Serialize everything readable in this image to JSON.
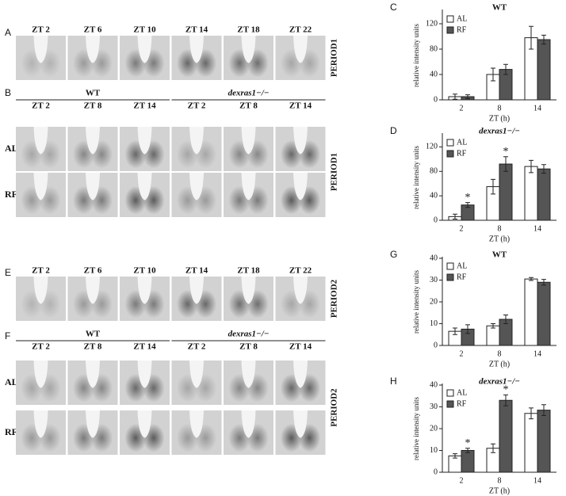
{
  "image_panels": [
    {
      "label": "A",
      "columns": [
        "ZT 2",
        "ZT 6",
        "ZT 10",
        "ZT 14",
        "ZT 18",
        "ZT 22"
      ],
      "side_label": "PERIOD1"
    },
    {
      "label": "B",
      "groups": [
        "WT",
        "dexras1−/−"
      ],
      "columns": [
        "ZT 2",
        "ZT 8",
        "ZT 14",
        "ZT 2",
        "ZT 8",
        "ZT 14"
      ],
      "rows": [
        "AL",
        "RF"
      ],
      "side_label": "PERIOD1"
    },
    {
      "label": "E",
      "columns": [
        "ZT 2",
        "ZT 6",
        "ZT 10",
        "ZT 14",
        "ZT 18",
        "ZT 22"
      ],
      "side_label": "PERIOD2"
    },
    {
      "label": "F",
      "groups": [
        "WT",
        "dexras1−/−"
      ],
      "columns": [
        "ZT 2",
        "ZT 8",
        "ZT 14",
        "ZT 2",
        "ZT 8",
        "ZT 14"
      ],
      "rows": [
        "AL",
        "RF"
      ],
      "side_label": "PERIOD2"
    }
  ],
  "chart_data": [
    {
      "type": "bar",
      "panel_label": "C",
      "title": "WT",
      "y_label": "relative intensity units",
      "x_label": "ZT (h)",
      "categories": [
        "2",
        "8",
        "14"
      ],
      "ylim": [
        0,
        140
      ],
      "yticks": [
        0,
        40,
        80,
        120
      ],
      "legend": "upper left",
      "series": [
        {
          "name": "AL",
          "color": "#ffffff",
          "values": [
            5,
            40,
            98
          ],
          "errors": [
            4,
            10,
            18
          ]
        },
        {
          "name": "RF",
          "color": "#555555",
          "values": [
            5,
            48,
            95
          ],
          "errors": [
            3,
            8,
            7
          ]
        }
      ]
    },
    {
      "type": "bar",
      "panel_label": "D",
      "title": "dexras1−/−",
      "y_label": "relative intensity units",
      "x_label": "ZT (h)",
      "categories": [
        "2",
        "8",
        "14"
      ],
      "ylim": [
        0,
        140
      ],
      "yticks": [
        0,
        40,
        80,
        120
      ],
      "legend": "upper left",
      "series": [
        {
          "name": "AL",
          "color": "#ffffff",
          "values": [
            6,
            55,
            88
          ],
          "errors": [
            4,
            12,
            10
          ]
        },
        {
          "name": "RF",
          "color": "#555555",
          "values": [
            25,
            92,
            84
          ],
          "errors": [
            4,
            12,
            7
          ],
          "annotations": [
            "*",
            "*",
            null
          ]
        }
      ]
    },
    {
      "type": "bar",
      "panel_label": "G",
      "title": "WT",
      "y_label": "relative intensity units",
      "x_label": "ZT (h)",
      "categories": [
        "2",
        "8",
        "14"
      ],
      "ylim": [
        0,
        40
      ],
      "yticks": [
        0,
        10,
        20,
        30,
        40
      ],
      "legend": "upper left",
      "series": [
        {
          "name": "AL",
          "color": "#ffffff",
          "values": [
            6.5,
            9,
            30.5
          ],
          "errors": [
            1.5,
            1,
            0.7
          ]
        },
        {
          "name": "RF",
          "color": "#555555",
          "values": [
            7.5,
            12,
            29
          ],
          "errors": [
            2,
            2,
            1.3
          ]
        }
      ]
    },
    {
      "type": "bar",
      "panel_label": "H",
      "title": "dexras1−/−",
      "y_label": "relative intensity units",
      "x_label": "ZT (h)",
      "categories": [
        "2",
        "8",
        "14"
      ],
      "ylim": [
        0,
        40
      ],
      "yticks": [
        0,
        10,
        20,
        30,
        40
      ],
      "legend": "upper left",
      "series": [
        {
          "name": "AL",
          "color": "#ffffff",
          "values": [
            7.5,
            11,
            27
          ],
          "errors": [
            1,
            2,
            2.5
          ]
        },
        {
          "name": "RF",
          "color": "#555555",
          "values": [
            10,
            33,
            28.5
          ],
          "errors": [
            1,
            2.5,
            2.5
          ],
          "annotations": [
            "*",
            "*",
            null
          ]
        }
      ]
    }
  ]
}
